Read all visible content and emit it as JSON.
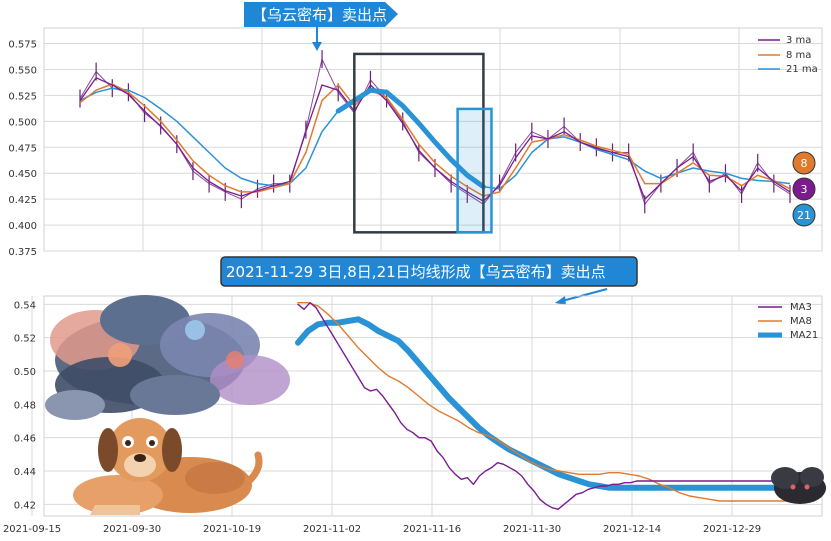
{
  "colors": {
    "ma3": "#7b1b8f",
    "ma8": "#e07b2e",
    "ma21": "#2a93d5",
    "grid": "#d9d9d9",
    "callout_bg": "#1f87d6",
    "box_dark": "#333b48",
    "box_blue": "#2a93d5"
  },
  "annotations": {
    "top_callout": "【乌云密布】卖出点",
    "mid_callout": "2021-11-29 3日,8日,21日均线形成【乌云密布】卖出点",
    "badges": [
      "8",
      "3",
      "21"
    ]
  },
  "illustrations": [
    "cloud-cluster-illustration",
    "dog-illustration",
    "small-dark-cloud-illustration"
  ],
  "chart_data": [
    {
      "type": "line",
      "series": [
        {
          "name": "3 ma",
          "color": "#7b1b8f"
        },
        {
          "name": "8 ma",
          "color": "#e07b2e"
        },
        {
          "name": "21 ma",
          "color": "#2a93d5"
        }
      ],
      "price": {
        "x": [
          0,
          20,
          40,
          60,
          80,
          100,
          120,
          140,
          160,
          180,
          200,
          220,
          240,
          260,
          280,
          300,
          320,
          340,
          360,
          380,
          400,
          420,
          440,
          460,
          480,
          500,
          520,
          540,
          560,
          580,
          600,
          620,
          640,
          660,
          680,
          700,
          720,
          740,
          760,
          780,
          800,
          820,
          840,
          860,
          880
        ],
        "y": [
          0.522,
          0.548,
          0.532,
          0.528,
          0.508,
          0.496,
          0.478,
          0.452,
          0.44,
          0.432,
          0.425,
          0.435,
          0.44,
          0.44,
          0.492,
          0.56,
          0.528,
          0.508,
          0.54,
          0.522,
          0.5,
          0.47,
          0.455,
          0.44,
          0.43,
          0.42,
          0.44,
          0.47,
          0.49,
          0.483,
          0.495,
          0.48,
          0.475,
          0.47,
          0.47,
          0.42,
          0.44,
          0.455,
          0.47,
          0.44,
          0.45,
          0.43,
          0.46,
          0.44,
          0.43
        ]
      },
      "ma3": {
        "x": [
          0,
          20,
          40,
          60,
          80,
          100,
          120,
          140,
          160,
          180,
          200,
          220,
          240,
          260,
          280,
          300,
          320,
          340,
          360,
          380,
          400,
          420,
          440,
          460,
          480,
          500,
          520,
          540,
          560,
          580,
          600,
          620,
          640,
          660,
          680,
          700,
          720,
          740,
          760,
          780,
          800,
          820,
          840,
          860,
          880
        ],
        "y": [
          0.52,
          0.542,
          0.535,
          0.526,
          0.51,
          0.495,
          0.478,
          0.455,
          0.442,
          0.433,
          0.428,
          0.433,
          0.438,
          0.442,
          0.49,
          0.535,
          0.53,
          0.51,
          0.535,
          0.52,
          0.498,
          0.472,
          0.455,
          0.442,
          0.432,
          0.423,
          0.438,
          0.465,
          0.486,
          0.483,
          0.49,
          0.48,
          0.474,
          0.47,
          0.466,
          0.425,
          0.44,
          0.455,
          0.466,
          0.442,
          0.448,
          0.433,
          0.455,
          0.442,
          0.432
        ]
      },
      "ma8": {
        "x": [
          0,
          20,
          40,
          60,
          80,
          100,
          120,
          140,
          160,
          180,
          200,
          220,
          240,
          260,
          280,
          300,
          320,
          340,
          360,
          380,
          400,
          420,
          440,
          460,
          480,
          500,
          520,
          540,
          560,
          580,
          600,
          620,
          640,
          660,
          680,
          700,
          720,
          740,
          760,
          780,
          800,
          820,
          840,
          860,
          880
        ],
        "y": [
          0.518,
          0.53,
          0.536,
          0.528,
          0.515,
          0.5,
          0.482,
          0.462,
          0.448,
          0.438,
          0.432,
          0.432,
          0.436,
          0.44,
          0.47,
          0.52,
          0.535,
          0.515,
          0.53,
          0.523,
          0.502,
          0.478,
          0.46,
          0.447,
          0.437,
          0.428,
          0.432,
          0.455,
          0.48,
          0.483,
          0.487,
          0.482,
          0.476,
          0.472,
          0.468,
          0.44,
          0.44,
          0.45,
          0.46,
          0.448,
          0.447,
          0.438,
          0.448,
          0.443,
          0.435
        ]
      },
      "ma21": {
        "x": [
          0,
          20,
          40,
          60,
          80,
          100,
          120,
          140,
          160,
          180,
          200,
          220,
          240,
          260,
          280,
          300,
          320,
          340,
          360,
          380,
          400,
          420,
          440,
          460,
          480,
          500,
          520,
          540,
          560,
          580,
          600,
          620,
          640,
          660,
          680,
          700,
          720,
          740,
          760,
          780,
          800,
          820,
          840,
          860,
          880
        ],
        "y": [
          0.52,
          0.528,
          0.532,
          0.53,
          0.523,
          0.512,
          0.5,
          0.485,
          0.47,
          0.455,
          0.445,
          0.44,
          0.438,
          0.44,
          0.455,
          0.49,
          0.51,
          0.52,
          0.53,
          0.528,
          0.515,
          0.498,
          0.48,
          0.463,
          0.448,
          0.437,
          0.435,
          0.448,
          0.47,
          0.483,
          0.485,
          0.48,
          0.473,
          0.468,
          0.463,
          0.452,
          0.445,
          0.45,
          0.455,
          0.452,
          0.45,
          0.445,
          0.443,
          0.442,
          0.44
        ]
      },
      "xlim": [
        0,
        880
      ],
      "ylim": [
        0.375,
        0.59
      ],
      "yticks": [
        "0.375",
        "0.400",
        "0.425",
        "0.450",
        "0.475",
        "0.500",
        "0.525",
        "0.550",
        "0.575"
      ],
      "legend": "top-right",
      "grid": true,
      "highlights": [
        {
          "x0": 340,
          "x1": 500,
          "y0": 0.393,
          "y1": 0.565
        },
        {
          "x0": 468,
          "x1": 510,
          "y0": 0.393,
          "y1": 0.512
        }
      ]
    },
    {
      "type": "line",
      "series": [
        {
          "name": "MA3",
          "color": "#7b1b8f",
          "x": [
            0,
            6,
            12,
            18,
            24,
            30,
            36,
            42,
            48,
            54,
            60,
            66,
            72,
            78,
            84,
            90,
            96,
            102,
            108,
            114,
            120,
            126,
            132,
            138,
            144,
            150,
            156,
            162,
            168,
            174,
            180,
            186,
            192,
            198,
            204,
            210,
            216,
            222,
            228,
            234,
            240,
            246,
            252,
            258,
            264,
            270,
            276,
            282,
            288,
            294,
            300,
            306,
            312,
            318,
            324,
            330,
            336,
            342,
            348,
            354,
            360,
            366,
            372,
            378,
            384,
            390,
            396,
            402,
            408,
            414,
            420,
            426,
            432,
            438,
            444,
            450,
            456,
            462,
            468,
            474,
            480,
            486,
            492,
            498
          ],
          "y": [
            0.54,
            0.537,
            0.541,
            0.538,
            0.532,
            0.526,
            0.52,
            0.514,
            0.508,
            0.502,
            0.496,
            0.49,
            0.488,
            0.489,
            0.485,
            0.48,
            0.475,
            0.469,
            0.465,
            0.463,
            0.46,
            0.46,
            0.458,
            0.452,
            0.448,
            0.442,
            0.438,
            0.435,
            0.436,
            0.432,
            0.437,
            0.44,
            0.442,
            0.445,
            0.444,
            0.442,
            0.44,
            0.437,
            0.432,
            0.428,
            0.423,
            0.42,
            0.418,
            0.417,
            0.42,
            0.423,
            0.426,
            0.427,
            0.429,
            0.43,
            0.431,
            0.431,
            0.432,
            0.432,
            0.433,
            0.433,
            0.434,
            0.434,
            0.434,
            0.434,
            0.434,
            0.434,
            0.434,
            0.434,
            0.434,
            0.434,
            0.434,
            0.434,
            0.434,
            0.434,
            0.434,
            0.434,
            0.434,
            0.434,
            0.434,
            0.434,
            0.434,
            0.434,
            0.434,
            0.434,
            0.434,
            0.434,
            0.434,
            0.434
          ]
        },
        {
          "name": "MA8",
          "color": "#e07b2e",
          "x": [
            0,
            6,
            12,
            18,
            24,
            30,
            36,
            42,
            48,
            54,
            60,
            66,
            72,
            78,
            84,
            90,
            96,
            102,
            108,
            114,
            120,
            126,
            132,
            138,
            144,
            150,
            156,
            162,
            168,
            174,
            180,
            186,
            192,
            198,
            204,
            210,
            216,
            222,
            228,
            234,
            240,
            246,
            252,
            258,
            264,
            270,
            276,
            282,
            288,
            294,
            300
          ],
          "y": [
            0.541,
            0.541,
            0.539,
            0.534,
            0.528,
            0.521,
            0.514,
            0.508,
            0.502,
            0.497,
            0.494,
            0.49,
            0.485,
            0.48,
            0.476,
            0.473,
            0.47,
            0.466,
            0.463,
            0.461,
            0.458,
            0.454,
            0.45,
            0.446,
            0.443,
            0.441,
            0.44,
            0.439,
            0.438,
            0.438,
            0.438,
            0.439,
            0.439,
            0.438,
            0.437,
            0.435,
            0.432,
            0.43,
            0.427,
            0.425,
            0.424,
            0.423,
            0.422,
            0.422,
            0.422,
            0.422,
            0.422,
            0.422,
            0.422,
            0.422,
            0.422
          ]
        },
        {
          "name": "MA21",
          "color": "#2a93d5",
          "x": [
            0,
            6,
            12,
            18,
            24,
            30,
            36,
            42,
            48,
            54,
            60,
            66,
            72,
            78,
            84,
            90,
            96,
            102,
            108,
            114,
            120,
            126,
            132,
            138,
            144,
            150,
            156,
            162,
            168,
            174,
            180,
            186,
            192,
            198,
            204,
            210,
            216,
            222,
            228,
            234,
            240,
            246,
            252,
            258,
            264,
            270,
            276,
            282,
            288,
            294,
            300
          ],
          "y": [
            0.517,
            0.524,
            0.528,
            0.529,
            0.529,
            0.53,
            0.531,
            0.528,
            0.524,
            0.521,
            0.518,
            0.512,
            0.505,
            0.498,
            0.491,
            0.484,
            0.478,
            0.472,
            0.466,
            0.461,
            0.457,
            0.453,
            0.45,
            0.447,
            0.444,
            0.441,
            0.438,
            0.436,
            0.434,
            0.432,
            0.431,
            0.43,
            0.43,
            0.43,
            0.43,
            0.43,
            0.43,
            0.43,
            0.43,
            0.43,
            0.43,
            0.43,
            0.43,
            0.43,
            0.43,
            0.43,
            0.43,
            0.43,
            0.43,
            0.43,
            0.43
          ]
        }
      ],
      "xticks": [
        "2021-09-15",
        "2021-09-30",
        "2021-10-19",
        "2021-11-02",
        "2021-11-16",
        "2021-11-30",
        "2021-12-14",
        "2021-12-29"
      ],
      "yticks": [
        "0.42",
        "0.44",
        "0.46",
        "0.48",
        "0.50",
        "0.52",
        "0.54"
      ],
      "ylim": [
        0.413,
        0.545
      ],
      "legend": "top-right",
      "grid": true
    }
  ]
}
